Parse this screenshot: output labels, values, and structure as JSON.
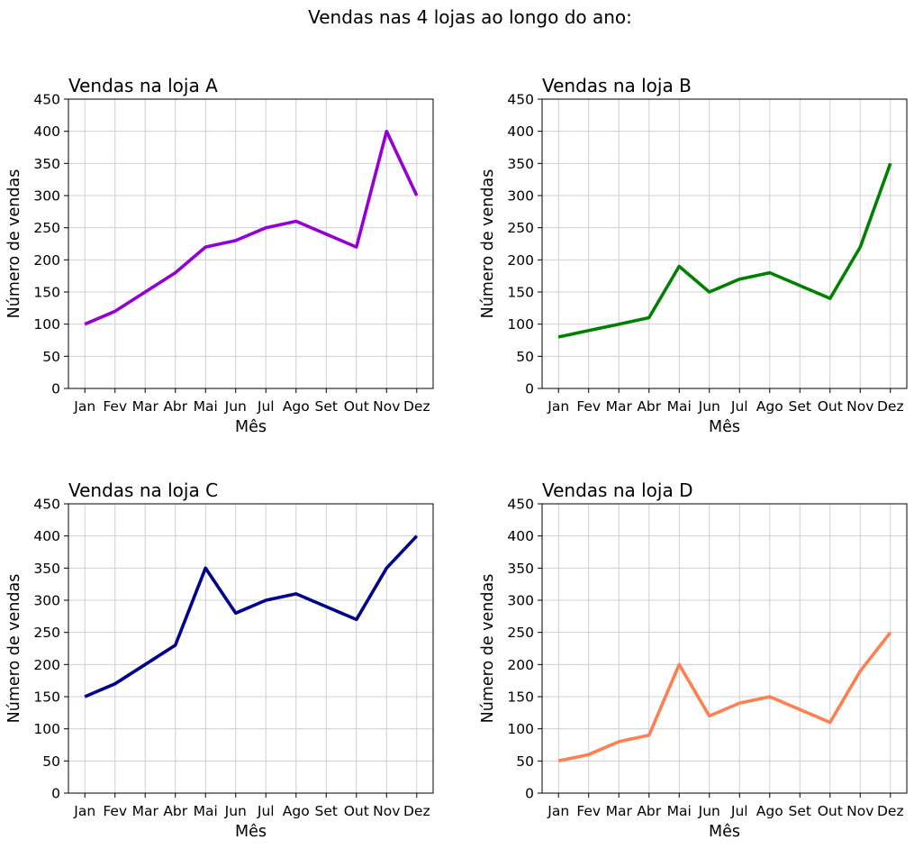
{
  "figure": {
    "title": "Vendas nas 4 lojas ao longo do ano:"
  },
  "chart_data": [
    {
      "type": "line",
      "title": "Vendas na loja A",
      "xlabel": "Mês",
      "ylabel": "Número de vendas",
      "categories": [
        "Jan",
        "Fev",
        "Mar",
        "Abr",
        "Mai",
        "Jun",
        "Jul",
        "Ago",
        "Set",
        "Out",
        "Nov",
        "Dez"
      ],
      "yticks": [
        "0",
        "50",
        "100",
        "150",
        "200",
        "250",
        "300",
        "350",
        "400",
        "450"
      ],
      "ylim": [
        0,
        450
      ],
      "grid": true,
      "series": [
        {
          "values": [
            100,
            120,
            150,
            180,
            220,
            230,
            250,
            260,
            240,
            220,
            400,
            300
          ],
          "color": "#9400d3"
        }
      ]
    },
    {
      "type": "line",
      "title": "Vendas na loja B",
      "xlabel": "Mês",
      "ylabel": "Número de vendas",
      "categories": [
        "Jan",
        "Fev",
        "Mar",
        "Abr",
        "Mai",
        "Jun",
        "Jul",
        "Ago",
        "Set",
        "Out",
        "Nov",
        "Dez"
      ],
      "yticks": [
        "0",
        "50",
        "100",
        "150",
        "200",
        "250",
        "300",
        "350",
        "400",
        "450"
      ],
      "ylim": [
        0,
        450
      ],
      "grid": true,
      "series": [
        {
          "values": [
            80,
            90,
            100,
            110,
            190,
            150,
            170,
            180,
            160,
            140,
            220,
            350
          ],
          "color": "#008000"
        }
      ]
    },
    {
      "type": "line",
      "title": "Vendas na loja C",
      "xlabel": "Mês",
      "ylabel": "Número de vendas",
      "categories": [
        "Jan",
        "Fev",
        "Mar",
        "Abr",
        "Mai",
        "Jun",
        "Jul",
        "Ago",
        "Set",
        "Out",
        "Nov",
        "Dez"
      ],
      "yticks": [
        "0",
        "50",
        "100",
        "150",
        "200",
        "250",
        "300",
        "350",
        "400",
        "450"
      ],
      "ylim": [
        0,
        450
      ],
      "grid": true,
      "series": [
        {
          "values": [
            150,
            170,
            200,
            230,
            350,
            280,
            300,
            310,
            290,
            270,
            350,
            400
          ],
          "color": "#00008b"
        }
      ]
    },
    {
      "type": "line",
      "title": "Vendas na loja D",
      "xlabel": "Mês",
      "ylabel": "Número de vendas",
      "categories": [
        "Jan",
        "Fev",
        "Mar",
        "Abr",
        "Mai",
        "Jun",
        "Jul",
        "Ago",
        "Set",
        "Out",
        "Nov",
        "Dez"
      ],
      "yticks": [
        "0",
        "50",
        "100",
        "150",
        "200",
        "250",
        "300",
        "350",
        "400",
        "450"
      ],
      "ylim": [
        0,
        450
      ],
      "grid": true,
      "series": [
        {
          "values": [
            50,
            60,
            80,
            90,
            200,
            120,
            140,
            150,
            130,
            110,
            190,
            250
          ],
          "color": "#ff7f50"
        }
      ]
    }
  ]
}
